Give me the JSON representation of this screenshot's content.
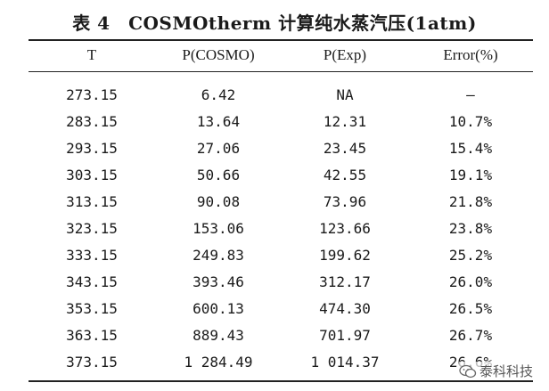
{
  "title": "表 4　COSMOtherm 计算纯水蒸汽压(1atm)",
  "headers": [
    "T",
    "P(COSMO)",
    "P(Exp)",
    "Error(%)"
  ],
  "rows": [
    [
      "273.15",
      "6.42",
      "NA",
      "—"
    ],
    [
      "283.15",
      "13.64",
      "12.31",
      "10.7%"
    ],
    [
      "293.15",
      "27.06",
      "23.45",
      "15.4%"
    ],
    [
      "303.15",
      "50.66",
      "42.55",
      "19.1%"
    ],
    [
      "313.15",
      "90.08",
      "73.96",
      "21.8%"
    ],
    [
      "323.15",
      "153.06",
      "123.66",
      "23.8%"
    ],
    [
      "333.15",
      "249.83",
      "199.62",
      "25.2%"
    ],
    [
      "343.15",
      "393.46",
      "312.17",
      "26.0%"
    ],
    [
      "353.15",
      "600.13",
      "474.30",
      "26.5%"
    ],
    [
      "363.15",
      "889.43",
      "701.97",
      "26.7%"
    ],
    [
      "373.15",
      "1 284.49",
      "1 014.37",
      "26.6%"
    ]
  ],
  "watermark": "泰科科技"
}
